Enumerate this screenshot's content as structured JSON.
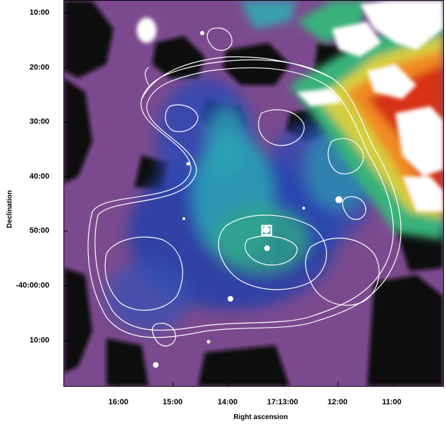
{
  "figure": {
    "y_axis_label": "Declination",
    "x_axis_label": "Right ascension",
    "y_ticks": [
      "10:00",
      "20:00",
      "30:00",
      "40:00",
      "50:00",
      "-40:00:00",
      "10:00"
    ],
    "x_ticks": [
      "16:00",
      "15:00",
      "14:00",
      "17:13:00",
      "12:00",
      "11:00"
    ]
  },
  "colors": {
    "background_black": "#0d0d0d",
    "purple": "#7a4c8f",
    "magenta": "#9b5ea8",
    "blue": "#1f3fae",
    "cyan": "#2aa3b4",
    "green": "#39b27a",
    "yellow": "#e6d13a",
    "orange": "#f08a24",
    "red": "#d63018",
    "white": "#ffffff",
    "contour": "#ffffff"
  }
}
